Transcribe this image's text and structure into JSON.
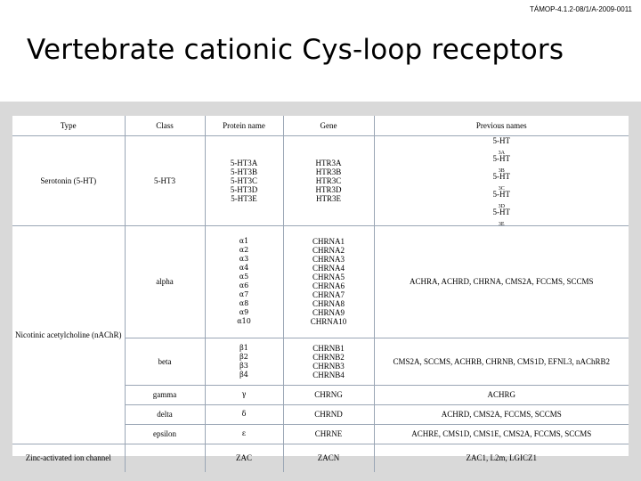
{
  "header": {
    "code": "TÁMOP-4.1.2-08/1/A-2009-0011",
    "title": "Vertebrate cationic Cys-loop receptors"
  },
  "table": {
    "columns": [
      "Type",
      "Class",
      "Protein name",
      "Gene",
      "Previous names"
    ],
    "types": {
      "serotonin": "Serotonin (5-HT)",
      "nicotinic": "Nicotinic acetylcholine (nAChR)",
      "zinc": "Zinc-activated ion channel"
    },
    "rows": {
      "ht3": {
        "class": "5-HT3",
        "proteins": [
          "5-HT3A",
          "5-HT3B",
          "5-HT3C",
          "5-HT3D",
          "5-HT3E"
        ],
        "genes": [
          "HTR3A",
          "HTR3B",
          "HTR3C",
          "HTR3D",
          "HTR3E"
        ],
        "previous_prefix": "5-HT",
        "previous_subs": [
          "3A",
          "3B",
          "3C",
          "3D",
          "3E"
        ]
      },
      "alpha": {
        "class": "alpha",
        "proteins": [
          "α1",
          "α2",
          "α3",
          "α4",
          "α5",
          "α6",
          "α7",
          "α8",
          "α9",
          "α10"
        ],
        "genes": [
          "CHRNA1",
          "CHRNA2",
          "CHRNA3",
          "CHRNA4",
          "CHRNA5",
          "CHRNA6",
          "CHRNA7",
          "CHRNA8",
          "CHRNA9",
          "CHRNA10"
        ],
        "previous": "ACHRA, ACHRD, CHRNA, CMS2A, FCCMS, SCCMS"
      },
      "beta": {
        "class": "beta",
        "proteins": [
          "β1",
          "β2",
          "β3",
          "β4"
        ],
        "genes": [
          "CHRNB1",
          "CHRNB2",
          "CHRNB3",
          "CHRNB4"
        ],
        "previous": "CMS2A, SCCMS, ACHRB, CHRNB, CMS1D, EFNL3, nAChRB2"
      },
      "gamma": {
        "class": "gamma",
        "protein": "γ",
        "gene": "CHRNG",
        "previous": "ACHRG"
      },
      "delta": {
        "class": "delta",
        "protein": "δ",
        "gene": "CHRND",
        "previous": "ACHRD, CMS2A, FCCMS, SCCMS"
      },
      "epsilon": {
        "class": "epsilon",
        "protein": "ε",
        "gene": "CHRNE",
        "previous": "ACHRE, CMS1D, CMS1E, CMS2A, FCCMS, SCCMS"
      },
      "zac": {
        "class": "",
        "protein": "ZAC",
        "gene": "ZACN",
        "previous": "ZAC1, L2m, LGICZ1"
      }
    }
  }
}
